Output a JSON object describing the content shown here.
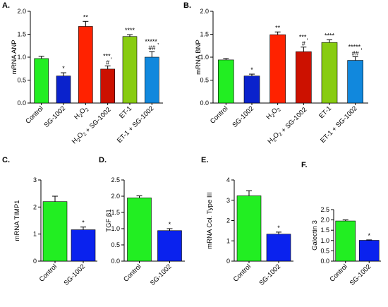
{
  "chart_data": [
    {
      "type": "bar",
      "panel": "A.",
      "ylabel": "mRNA ANP",
      "ylim": [
        0,
        2.0
      ],
      "yticks": [
        "0.0",
        "0.5",
        "1.0",
        "1.5",
        "2.0"
      ],
      "categories": [
        "Control",
        "SG-1002",
        "H2O2",
        "H2O2 + SG-1002",
        "ET-1",
        "ET-1 + SG-1002"
      ],
      "values": [
        0.97,
        0.59,
        1.67,
        0.74,
        1.45,
        1.0
      ],
      "errors": [
        0.05,
        0.07,
        0.11,
        0.07,
        0.04,
        0.12
      ],
      "colors": [
        "#22ee22",
        "#0a22cc",
        "#ff2200",
        "#cc1100",
        "#88cc11",
        "#1188dd"
      ],
      "sig": [
        [
          "",
          ""
        ],
        [
          "*",
          ""
        ],
        [
          "**",
          ""
        ],
        [
          "***,",
          "#"
        ],
        [
          "****",
          ""
        ],
        [
          "*****,",
          "##"
        ]
      ]
    },
    {
      "type": "bar",
      "panel": "B.",
      "ylabel": "mRNA BNP",
      "ylim": [
        0,
        2.0
      ],
      "yticks": [
        "0.0",
        "0.5",
        "1.0",
        "1.5",
        "2.0"
      ],
      "categories": [
        "Control",
        "SG-1002",
        "H2O2",
        "H2O2 + SG-1002",
        "ET-1",
        "ET-1 + SG-1002"
      ],
      "values": [
        0.94,
        0.59,
        1.49,
        1.12,
        1.32,
        0.93
      ],
      "errors": [
        0.03,
        0.04,
        0.06,
        0.1,
        0.06,
        0.08
      ],
      "colors": [
        "#22ee22",
        "#0a22cc",
        "#ff2200",
        "#cc1100",
        "#88cc11",
        "#1188dd"
      ],
      "sig": [
        [
          "",
          ""
        ],
        [
          "*",
          ""
        ],
        [
          "**",
          ""
        ],
        [
          "***,",
          "#"
        ],
        [
          "****",
          ""
        ],
        [
          "*****,",
          "##"
        ]
      ]
    },
    {
      "type": "bar",
      "panel": "C.",
      "ylabel": "mRNA TIMP1",
      "ylim": [
        0,
        3
      ],
      "yticks": [
        "0",
        "1",
        "2",
        "3"
      ],
      "categories": [
        "Control",
        "SG-1002"
      ],
      "values": [
        2.2,
        1.16
      ],
      "errors": [
        0.2,
        0.1
      ],
      "colors": [
        "#22ee22",
        "#0a22ee"
      ],
      "sig": [
        [
          "",
          ""
        ],
        [
          "*",
          ""
        ]
      ]
    },
    {
      "type": "bar",
      "panel": "D.",
      "ylabel": "TGF β1",
      "ylim": [
        0,
        2.5
      ],
      "yticks": [
        "0.0",
        "0.5",
        "1.0",
        "1.5",
        "2.0",
        "2.5"
      ],
      "categories": [
        "Control",
        "SG-1002"
      ],
      "values": [
        1.95,
        0.94
      ],
      "errors": [
        0.06,
        0.06
      ],
      "colors": [
        "#22ee22",
        "#0a22ee"
      ],
      "sig": [
        [
          "",
          ""
        ],
        [
          "*",
          ""
        ]
      ]
    },
    {
      "type": "bar",
      "panel": "E.",
      "ylabel": "mRNA Col. Type III",
      "ylim": [
        0,
        4
      ],
      "yticks": [
        "0",
        "1",
        "2",
        "3",
        "4"
      ],
      "categories": [
        "Control",
        "SG-1002"
      ],
      "values": [
        3.22,
        1.33
      ],
      "errors": [
        0.25,
        0.1
      ],
      "colors": [
        "#22ee22",
        "#0a22ee"
      ],
      "sig": [
        [
          "",
          ""
        ],
        [
          "*",
          ""
        ]
      ]
    },
    {
      "type": "bar",
      "panel": "F.",
      "ylabel": "Galectin 3",
      "ylim": [
        0,
        2.5
      ],
      "yticks": [
        "0.0",
        "0.5",
        "1.0",
        "1.5",
        "2.0",
        "2.5"
      ],
      "categories": [
        "Control",
        "SG-1002"
      ],
      "values": [
        1.95,
        1.01
      ],
      "errors": [
        0.05,
        0.02
      ],
      "colors": [
        "#22ee22",
        "#0a22ee"
      ],
      "sig": [
        [
          "",
          ""
        ],
        [
          "*",
          ""
        ]
      ]
    }
  ]
}
